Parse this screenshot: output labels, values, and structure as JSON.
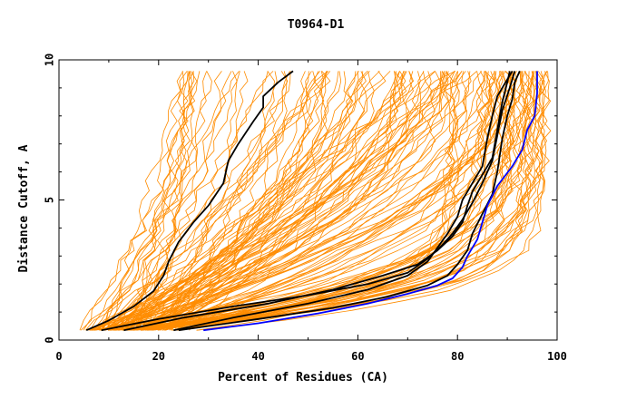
{
  "chart_data": {
    "type": "line",
    "title": "T0964-D1",
    "xlabel": "Percent of Residues (CA)",
    "ylabel": "Distance Cutoff, A",
    "xlim": [
      0,
      100
    ],
    "ylim": [
      0,
      10
    ],
    "x_ticks": [
      0,
      20,
      40,
      60,
      80,
      100
    ],
    "y_ticks": [
      0,
      5,
      10
    ],
    "grid": false,
    "legend": "none",
    "colors": {
      "background_models": "#ff8c00",
      "highlight_models": "#000000",
      "best_model": "#0000ff",
      "axes": "#000000"
    },
    "orange_bundle": {
      "count": 150,
      "y_start": 0.35,
      "y_end": 9.6
    },
    "black_models": [
      {
        "points": [
          [
            5.5,
            0.35
          ],
          [
            10,
            0.7
          ],
          [
            15,
            1.2
          ],
          [
            19,
            1.75
          ],
          [
            21,
            2.3
          ],
          [
            22,
            2.8
          ],
          [
            24,
            3.5
          ],
          [
            27,
            4.2
          ],
          [
            30,
            4.8
          ],
          [
            33,
            5.6
          ],
          [
            34,
            6.4
          ],
          [
            36,
            7.0
          ],
          [
            39,
            7.8
          ],
          [
            41,
            8.3
          ],
          [
            41,
            8.7
          ],
          [
            44,
            9.2
          ],
          [
            47,
            9.6
          ]
        ]
      },
      {
        "points": [
          [
            8.5,
            0.35
          ],
          [
            20,
            0.75
          ],
          [
            35,
            1.2
          ],
          [
            50,
            1.6
          ],
          [
            62,
            2.0
          ],
          [
            70,
            2.4
          ],
          [
            74,
            2.9
          ],
          [
            77,
            3.4
          ],
          [
            79,
            3.8
          ],
          [
            81,
            4.3
          ],
          [
            83,
            4.9
          ],
          [
            85,
            5.6
          ],
          [
            87,
            6.4
          ],
          [
            88,
            7.3
          ],
          [
            89,
            8.2
          ],
          [
            90.5,
            9.0
          ],
          [
            91.5,
            9.6
          ]
        ]
      },
      {
        "points": [
          [
            13,
            0.35
          ],
          [
            25,
            0.8
          ],
          [
            42,
            1.3
          ],
          [
            55,
            1.8
          ],
          [
            65,
            2.3
          ],
          [
            72,
            2.7
          ],
          [
            76,
            3.2
          ],
          [
            79,
            3.7
          ],
          [
            81,
            4.2
          ],
          [
            82,
            4.8
          ],
          [
            83,
            5.3
          ],
          [
            85,
            5.9
          ],
          [
            87,
            6.5
          ],
          [
            88,
            7.5
          ],
          [
            89,
            8.5
          ],
          [
            90,
            9.2
          ],
          [
            90.5,
            9.6
          ]
        ]
      },
      {
        "points": [
          [
            24,
            0.35
          ],
          [
            40,
            0.75
          ],
          [
            55,
            1.15
          ],
          [
            66,
            1.55
          ],
          [
            74,
            1.95
          ],
          [
            78,
            2.3
          ],
          [
            80,
            2.7
          ],
          [
            82,
            3.2
          ],
          [
            83,
            3.8
          ],
          [
            85,
            4.5
          ],
          [
            87,
            5.2
          ],
          [
            88,
            6.0
          ],
          [
            89,
            7.2
          ],
          [
            90,
            8.0
          ],
          [
            91,
            8.6
          ],
          [
            91.5,
            9.2
          ],
          [
            92.5,
            9.6
          ]
        ]
      },
      {
        "points": [
          [
            23,
            0.35
          ],
          [
            35,
            0.8
          ],
          [
            50,
            1.3
          ],
          [
            62,
            1.8
          ],
          [
            70,
            2.3
          ],
          [
            74,
            2.8
          ],
          [
            76,
            3.3
          ],
          [
            78,
            3.8
          ],
          [
            80,
            4.4
          ],
          [
            81,
            5.0
          ],
          [
            82,
            5.3
          ],
          [
            85,
            6.2
          ],
          [
            86,
            7.2
          ],
          [
            87,
            8.0
          ],
          [
            88,
            8.7
          ],
          [
            90,
            9.3
          ],
          [
            91,
            9.6
          ]
        ]
      }
    ],
    "blue_model": {
      "points": [
        [
          29,
          0.35
        ],
        [
          40,
          0.6
        ],
        [
          52,
          0.95
        ],
        [
          62,
          1.3
        ],
        [
          70,
          1.65
        ],
        [
          76,
          1.95
        ],
        [
          79,
          2.2
        ],
        [
          81,
          2.6
        ],
        [
          82,
          3.0
        ],
        [
          84,
          3.6
        ],
        [
          85,
          4.2
        ],
        [
          86,
          4.8
        ],
        [
          88,
          5.5
        ],
        [
          91,
          6.2
        ],
        [
          93,
          6.8
        ],
        [
          94,
          7.5
        ],
        [
          95.5,
          8.0
        ],
        [
          96,
          8.8
        ],
        [
          96,
          9.6
        ]
      ]
    }
  }
}
